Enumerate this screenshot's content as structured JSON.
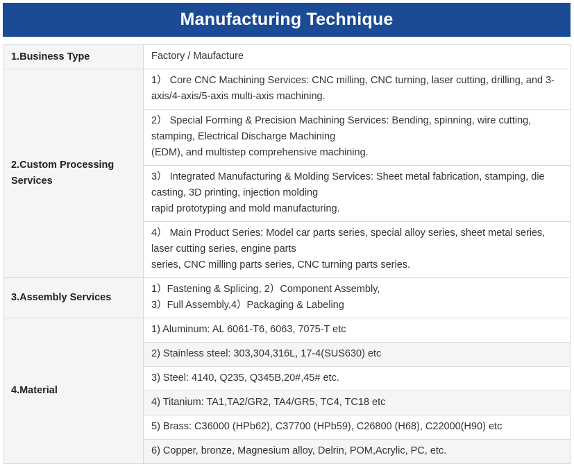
{
  "title": "Manufacturing Technique",
  "rows": {
    "business_type": {
      "label": "1.Business Type",
      "value": "Factory / Maufacture"
    },
    "custom_processing": {
      "label": "2.Custom Processing Services",
      "items": [
        {
          "lines": [
            "1）  Core CNC Machining Services: CNC milling, CNC turning, laser cutting, drilling, and 3-",
            "axis/4-axis/5-axis multi-axis machining."
          ]
        },
        {
          "lines": [
            "2）  Special Forming & Precision Machining Services: Bending, spinning, wire cutting,",
            "stamping, Electrical Discharge Machining",
            "(EDM), and multistep comprehensive machining."
          ]
        },
        {
          "lines": [
            "3）  Integrated Manufacturing & Molding Services: Sheet metal fabrication, stamping, die",
            "casting, 3D printing, injection molding",
            "rapid prototyping and mold manufacturing."
          ]
        },
        {
          "lines": [
            "4）  Main Product Series: Model car parts series, special alloy series, sheet metal series,",
            "laser cutting series, engine parts",
            "series, CNC milling parts series, CNC turning parts series."
          ]
        }
      ]
    },
    "assembly": {
      "label": "3.Assembly Services",
      "lines": [
        "1）Fastening & Splicing, 2）Component Assembly,",
        "3）Full Assembly,4）Packaging & Labeling"
      ]
    },
    "material": {
      "label": "4.Material",
      "items": [
        "1) Aluminum: AL 6061-T6, 6063, 7075-T etc",
        "2) Stainless steel: 303,304,316L, 17-4(SUS630) etc",
        "3) Steel: 4140, Q235, Q345B,20#,45# etc.",
        "4) Titanium: TA1,TA2/GR2, TA4/GR5, TC4, TC18 etc",
        "5) Brass: C36000 (HPb62), C37700 (HPb59), C26800 (H68), C22000(H90) etc",
        "6) Copper, bronze, Magnesium alloy, Delrin, POM,Acrylic, PC, etc."
      ]
    }
  },
  "colors": {
    "header_bg": "#1c4b96",
    "header_text": "#ffffff",
    "label_bg": "#f5f5f5",
    "border": "#d9d9d9"
  }
}
